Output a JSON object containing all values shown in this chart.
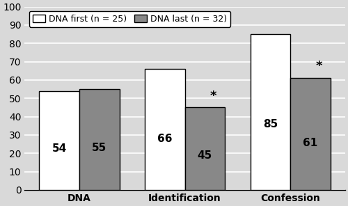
{
  "categories": [
    "DNA",
    "Identification",
    "Confession"
  ],
  "dna_first_values": [
    54,
    66,
    85
  ],
  "dna_last_values": [
    55,
    45,
    61
  ],
  "dna_first_label": "DNA first (n = 25)",
  "dna_last_label": "DNA last (n = 32)",
  "bar_color_first": "#ffffff",
  "bar_color_last": "#888888",
  "bar_edgecolor": "#000000",
  "ylim": [
    0,
    100
  ],
  "yticks": [
    0,
    10,
    20,
    30,
    40,
    50,
    60,
    70,
    80,
    90,
    100
  ],
  "value_label_fontsize": 11,
  "tick_label_fontsize": 10,
  "legend_fontsize": 9,
  "bar_width": 0.38,
  "group_positions": [
    0,
    1,
    2
  ],
  "background_color": "#d9d9d9",
  "plot_bg_color": "#d9d9d9",
  "grid_color": "#ffffff",
  "grid_linewidth": 1.2
}
